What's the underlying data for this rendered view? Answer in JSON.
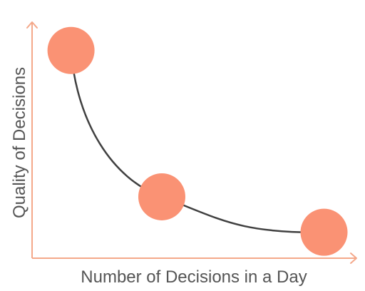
{
  "chart_data": {
    "type": "line",
    "title": "",
    "xlabel": "Number of Decisions in a Day",
    "ylabel": "Quality of Decisions",
    "grid": false,
    "legend": "none",
    "series": [
      {
        "points": [
          {
            "x": 0.12,
            "y": 0.88
          },
          {
            "x": 0.4,
            "y": 0.26
          },
          {
            "x": 0.9,
            "y": 0.11
          }
        ],
        "curve_color": "#404040",
        "marker_color": "#fa9274"
      }
    ],
    "xlim": [
      0,
      1
    ],
    "ylim": [
      0,
      1
    ]
  },
  "colors": {
    "axis": "#f4a88a",
    "marker": "#fa9274",
    "curve": "#404040",
    "label": "#555555"
  }
}
